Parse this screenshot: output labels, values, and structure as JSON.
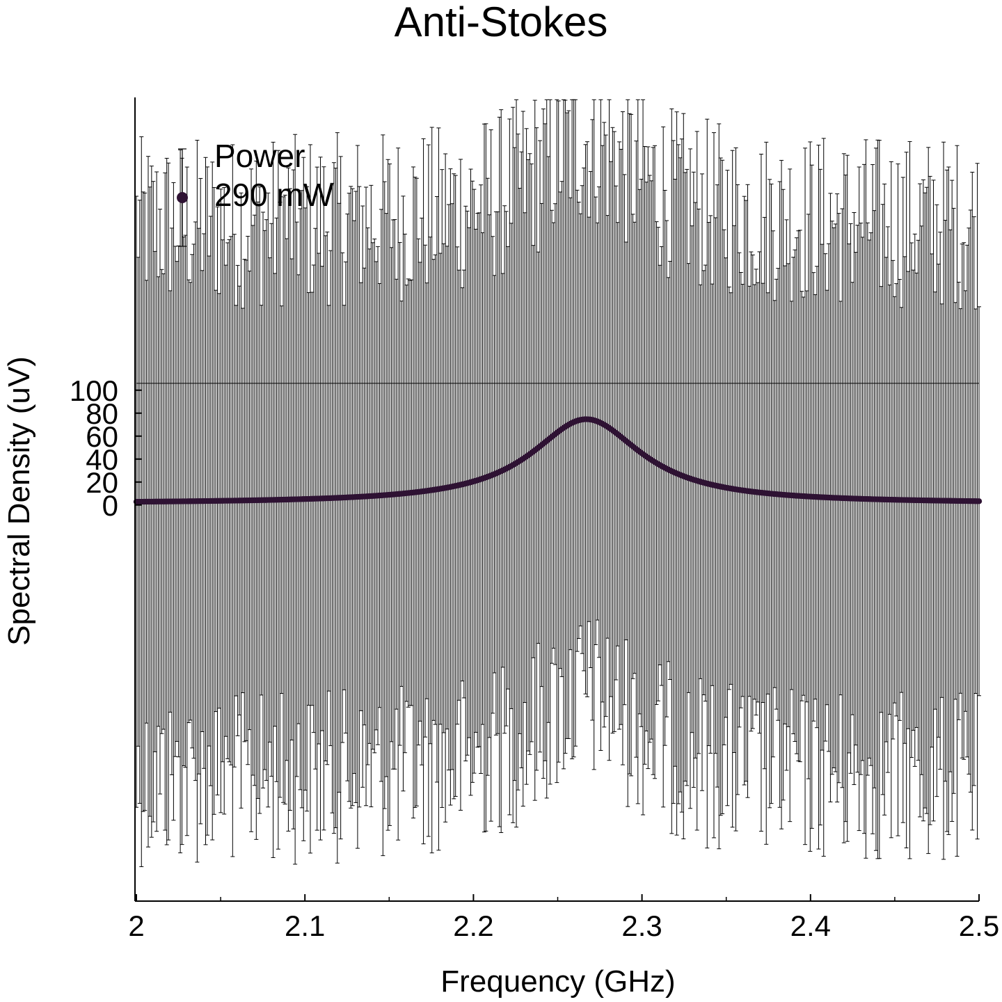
{
  "chart_data": {
    "type": "scatter",
    "title": "Anti-Stokes",
    "xlabel": "Frequency (GHz)",
    "ylabel": "Spectral Density (uV)",
    "xlim": [
      2.0,
      2.5
    ],
    "ylim": [
      -345,
      355
    ],
    "xticks": [
      2,
      2.1,
      2.2,
      2.3,
      2.4,
      2.5
    ],
    "xtick_labels": [
      "2",
      "2.1",
      "2.2",
      "2.3",
      "2.4",
      "2.5"
    ],
    "yticks": [
      0,
      20,
      40,
      60,
      80,
      100
    ],
    "ytick_labels": [
      "0",
      "20",
      "40",
      "60",
      "80",
      "100"
    ],
    "reference_line_y": 106,
    "grid": false,
    "legend": {
      "placement": "top-left",
      "title": "Power",
      "entries": [
        "290 mW"
      ]
    },
    "series": [
      {
        "name": "290 mW",
        "color": "#2e1233",
        "marker": "circle",
        "lorentzian": {
          "amplitude": 73.5,
          "center_ghz": 2.267,
          "hwhm_ghz": 0.04,
          "baseline": 1.2
        },
        "error_bar_half_width_typical": 245,
        "sample_points": [
          {
            "x": 2.0,
            "y": 1.5
          },
          {
            "x": 2.05,
            "y": 3.3
          },
          {
            "x": 2.1,
            "y": 6.5
          },
          {
            "x": 2.15,
            "y": 12.3
          },
          {
            "x": 2.2,
            "y": 27.5
          },
          {
            "x": 2.25,
            "y": 67.0
          },
          {
            "x": 2.267,
            "y": 73.5
          },
          {
            "x": 2.3,
            "y": 45.0
          },
          {
            "x": 2.35,
            "y": 16.0
          },
          {
            "x": 2.4,
            "y": 7.3
          },
          {
            "x": 2.45,
            "y": 4.5
          },
          {
            "x": 2.5,
            "y": 2.8
          }
        ]
      }
    ]
  },
  "colors": {
    "series": "#2e1233",
    "errorbar": "#000000",
    "axis": "#000000"
  }
}
